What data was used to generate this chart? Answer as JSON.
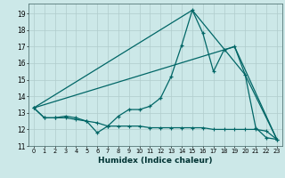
{
  "xlabel": "Humidex (Indice chaleur)",
  "background_color": "#cce8e8",
  "grid_color": "#b0cccc",
  "line_color": "#006666",
  "xlim": [
    -0.5,
    23.5
  ],
  "ylim": [
    11,
    19.6
  ],
  "yticks": [
    11,
    12,
    13,
    14,
    15,
    16,
    17,
    18,
    19
  ],
  "xticks": [
    0,
    1,
    2,
    3,
    4,
    5,
    6,
    7,
    8,
    9,
    10,
    11,
    12,
    13,
    14,
    15,
    16,
    17,
    18,
    19,
    20,
    21,
    22,
    23
  ],
  "series1_x": [
    0,
    1,
    2,
    3,
    4,
    5,
    6,
    7,
    8,
    9,
    10,
    11,
    12,
    13,
    14,
    15,
    16,
    17,
    18,
    19,
    20,
    21,
    22,
    23
  ],
  "series1_y": [
    13.3,
    12.7,
    12.7,
    12.8,
    12.7,
    12.5,
    11.8,
    12.2,
    12.8,
    13.2,
    13.2,
    13.4,
    13.9,
    15.2,
    17.1,
    19.2,
    17.8,
    15.5,
    16.8,
    17.0,
    15.3,
    12.1,
    11.5,
    11.4
  ],
  "series2_x": [
    0,
    1,
    2,
    3,
    4,
    5,
    6,
    7,
    8,
    9,
    10,
    11,
    12,
    13,
    14,
    15,
    16,
    17,
    18,
    19,
    20,
    21,
    22,
    23
  ],
  "series2_y": [
    13.3,
    12.7,
    12.7,
    12.7,
    12.6,
    12.5,
    12.4,
    12.2,
    12.2,
    12.2,
    12.2,
    12.1,
    12.1,
    12.1,
    12.1,
    12.1,
    12.1,
    12.0,
    12.0,
    12.0,
    12.0,
    12.0,
    11.9,
    11.4
  ],
  "series3_x": [
    0,
    15,
    20,
    23
  ],
  "series3_y": [
    13.3,
    19.2,
    15.3,
    11.4
  ],
  "series4_x": [
    0,
    19,
    23
  ],
  "series4_y": [
    13.3,
    17.0,
    11.4
  ]
}
